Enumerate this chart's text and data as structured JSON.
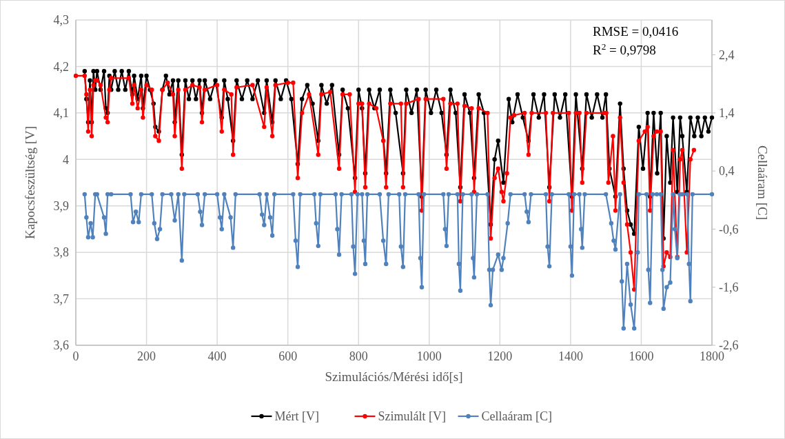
{
  "chart_data": {
    "type": "line",
    "xlabel": "Szimulációs/Mérési  idő[s]",
    "ylabel": "Kapocsfeszültség [V]",
    "y2label": "Cellaáram [C]",
    "annotations": [
      "RMSE = 0,0416",
      "R$^{2}$ = 0,9798"
    ],
    "xlim": [
      0,
      1800
    ],
    "xticks": [
      0,
      200,
      400,
      600,
      800,
      1000,
      1200,
      1400,
      1600,
      1800
    ],
    "ylim": [
      3.6,
      4.3
    ],
    "yticks": [
      {
        "value": 3.6,
        "label": "3,6"
      },
      {
        "value": 3.7,
        "label": "3,7"
      },
      {
        "value": 3.8,
        "label": "3,8"
      },
      {
        "value": 3.9,
        "label": "3,9"
      },
      {
        "value": 4,
        "label": "4"
      },
      {
        "value": 4.1,
        "label": "4,1"
      },
      {
        "value": 4.2,
        "label": "4,2"
      },
      {
        "value": 4.3,
        "label": "4,3"
      }
    ],
    "y2lim": [
      -2.6,
      3.0
    ],
    "y2ticks": [
      {
        "value": -2.6,
        "label": "-2,6"
      },
      {
        "value": -1.6,
        "label": "-1,6"
      },
      {
        "value": -0.6,
        "label": "-0,6"
      },
      {
        "value": 0.4,
        "label": "0,4"
      },
      {
        "value": 1.4,
        "label": "1,4"
      },
      {
        "value": 2.4,
        "label": "2,4"
      }
    ],
    "grid": true,
    "legend": "bottom",
    "marker": "circle",
    "line_style": "solid",
    "series": [
      {
        "name": "Mért [V]",
        "color": "#000000",
        "x": [
          25,
          30,
          35,
          40,
          45,
          50,
          55,
          60,
          70,
          80,
          85,
          90,
          95,
          100,
          110,
          120,
          130,
          140,
          150,
          160,
          165,
          175,
          185,
          190,
          200,
          210,
          220,
          225,
          235,
          245,
          255,
          265,
          275,
          280,
          290,
          300,
          310,
          320,
          330,
          340,
          350,
          357,
          365,
          380,
          395,
          413,
          420,
          430,
          445,
          455,
          470,
          485,
          500,
          515,
          533,
          540,
          556,
          565,
          580,
          595,
          610,
          628,
          640,
          655,
          670,
          686,
          695,
          710,
          725,
          745,
          755,
          770,
          790,
          800,
          810,
          819,
          830,
          845,
          860,
          878,
          890,
          905,
          926,
          935,
          950,
          965,
          979,
          990,
          1005,
          1020,
          1035,
          1049,
          1060,
          1075,
          1088,
          1100,
          1115,
          1127,
          1140,
          1155,
          1174,
          1185,
          1195,
          1210,
          1225,
          1235,
          1250,
          1265,
          1281,
          1295,
          1310,
          1325,
          1340,
          1355,
          1370,
          1385,
          1404,
          1415,
          1433,
          1445,
          1460,
          1475,
          1490,
          1500,
          1510,
          1527,
          1540,
          1550,
          1560,
          1570,
          1580,
          1593,
          1605,
          1618,
          1625,
          1635,
          1645,
          1655,
          1663,
          1672,
          1682,
          1690,
          1702,
          1710,
          1716,
          1729,
          1739,
          1750,
          1760,
          1770,
          1780,
          1790,
          1800
        ],
        "values": [
          4.19,
          4.13,
          4.08,
          4.17,
          4.08,
          4.19,
          4.15,
          4.19,
          4.15,
          4.19,
          4.11,
          4.1,
          4.18,
          4.15,
          4.19,
          4.15,
          4.19,
          4.15,
          4.19,
          4.14,
          4.18,
          4.13,
          4.18,
          4.11,
          4.18,
          4.15,
          4.12,
          4.07,
          4.06,
          4.15,
          4.18,
          4.14,
          4.17,
          4.08,
          4.17,
          4.01,
          4.17,
          4.13,
          4.17,
          4.13,
          4.17,
          4.1,
          4.17,
          4.13,
          4.17,
          4.09,
          4.17,
          4.13,
          4.04,
          4.17,
          4.13,
          4.17,
          4.13,
          4.17,
          4.1,
          4.17,
          4.08,
          4.17,
          4.13,
          4.17,
          4.13,
          3.99,
          4.13,
          4.16,
          4.12,
          4.04,
          4.16,
          4.12,
          4.16,
          4.01,
          4.15,
          4.11,
          3.96,
          4.15,
          4.11,
          3.97,
          4.15,
          4.11,
          4.15,
          3.97,
          4.15,
          4.1,
          3.97,
          4.15,
          4.1,
          4.15,
          3.92,
          4.15,
          4.1,
          4.15,
          4.1,
          4.01,
          4.15,
          4.1,
          3.94,
          4.14,
          4.1,
          3.96,
          4.14,
          4.1,
          3.86,
          4.0,
          4.04,
          3.95,
          4.13,
          4.08,
          4.14,
          4.09,
          4.04,
          4.14,
          4.09,
          4.14,
          3.94,
          4.14,
          4.09,
          4.14,
          3.92,
          4.14,
          3.98,
          4.14,
          4.09,
          4.14,
          4.09,
          4.14,
          3.98,
          3.92,
          4.12,
          3.98,
          3.89,
          3.86,
          3.84,
          4.07,
          3.98,
          4.1,
          3.92,
          4.1,
          3.97,
          4.1,
          3.83,
          4.05,
          3.95,
          4.09,
          3.93,
          4.09,
          4.05,
          3.93,
          4.09,
          4.05,
          4.09,
          4.05,
          4.09,
          4.06,
          4.09
        ]
      },
      {
        "name": "Szimulált [V]",
        "color": "#ff0000",
        "x": [
          0,
          25,
          30,
          35,
          40,
          45,
          50,
          55,
          60,
          70,
          85,
          90,
          95,
          100,
          150,
          160,
          165,
          175,
          185,
          190,
          200,
          215,
          225,
          235,
          245,
          260,
          275,
          280,
          290,
          300,
          310,
          330,
          350,
          357,
          365,
          400,
          413,
          420,
          440,
          445,
          455,
          500,
          533,
          540,
          556,
          565,
          600,
          615,
          628,
          640,
          660,
          686,
          695,
          720,
          745,
          755,
          775,
          790,
          800,
          810,
          819,
          830,
          850,
          870,
          878,
          890,
          920,
          926,
          935,
          970,
          979,
          990,
          1040,
          1049,
          1060,
          1080,
          1088,
          1100,
          1120,
          1127,
          1140,
          1165,
          1174,
          1185,
          1195,
          1205,
          1210,
          1220,
          1230,
          1240,
          1270,
          1281,
          1290,
          1330,
          1340,
          1350,
          1395,
          1404,
          1415,
          1425,
          1433,
          1445,
          1495,
          1501,
          1507,
          1520,
          1527,
          1540,
          1550,
          1560,
          1570,
          1580,
          1593,
          1610,
          1618,
          1625,
          1635,
          1644,
          1655,
          1663,
          1672,
          1682,
          1690,
          1702,
          1710,
          1716,
          1729,
          1739,
          1749
        ],
        "values": [
          4.18,
          4.18,
          4.14,
          4.06,
          4.15,
          4.05,
          4.16,
          4.17,
          4.17,
          4.16,
          4.09,
          4.08,
          4.15,
          4.175,
          4.175,
          4.12,
          4.16,
          4.11,
          4.15,
          4.09,
          4.16,
          4.15,
          4.05,
          4.04,
          4.15,
          4.165,
          4.14,
          4.05,
          4.15,
          3.98,
          4.15,
          4.16,
          4.155,
          4.08,
          4.15,
          4.16,
          4.06,
          4.15,
          4.14,
          4.01,
          4.155,
          4.16,
          4.07,
          4.155,
          4.05,
          4.16,
          4.165,
          4.165,
          3.96,
          4.1,
          4.14,
          4.01,
          4.14,
          4.145,
          3.98,
          4.14,
          4.14,
          3.93,
          4.12,
          4.12,
          3.94,
          4.12,
          4.11,
          4.04,
          3.94,
          4.12,
          4.12,
          3.94,
          4.12,
          4.13,
          3.89,
          4.13,
          4.13,
          3.98,
          4.12,
          4.12,
          3.91,
          4.115,
          4.11,
          3.93,
          4.11,
          4.1,
          3.83,
          3.96,
          3.98,
          3.93,
          3.91,
          3.97,
          4.09,
          4.095,
          4.1,
          4.01,
          4.1,
          4.1,
          3.91,
          4.1,
          4.1,
          3.89,
          4.1,
          4.1,
          3.95,
          4.1,
          4.1,
          4.1,
          3.95,
          4.05,
          3.89,
          4.09,
          3.95,
          3.86,
          3.8,
          3.72,
          4.04,
          4.06,
          4.07,
          3.89,
          4.05,
          4.06,
          4.06,
          3.77,
          3.8,
          3.79,
          4.02,
          3.79,
          4.0,
          4.02,
          3.8,
          4.0,
          4.02
        ]
      },
      {
        "name": "Cellaáram [C]",
        "color": "#4f81bd",
        "axis": "y2",
        "x": [
          25,
          30,
          35,
          42,
          48,
          55,
          60,
          80,
          85,
          90,
          100,
          155,
          162,
          170,
          178,
          185,
          215,
          222,
          230,
          238,
          245,
          270,
          280,
          290,
          300,
          307,
          345,
          352,
          357,
          365,
          400,
          408,
          413,
          420,
          438,
          445,
          452,
          520,
          527,
          533,
          540,
          550,
          556,
          562,
          615,
          622,
          628,
          635,
          675,
          680,
          686,
          692,
          735,
          740,
          745,
          752,
          780,
          785,
          790,
          797,
          810,
          815,
          819,
          825,
          860,
          870,
          878,
          885,
          915,
          920,
          926,
          932,
          970,
          975,
          979,
          985,
          1040,
          1045,
          1049,
          1055,
          1080,
          1084,
          1088,
          1095,
          1120,
          1124,
          1127,
          1135,
          1165,
          1170,
          1174,
          1180,
          1195,
          1205,
          1210,
          1222,
          1230,
          1270,
          1276,
          1281,
          1288,
          1330,
          1335,
          1340,
          1347,
          1395,
          1400,
          1404,
          1410,
          1425,
          1430,
          1433,
          1440,
          1500,
          1515,
          1522,
          1527,
          1540,
          1545,
          1550,
          1560,
          1570,
          1580,
          1590,
          1593,
          1615,
          1620,
          1625,
          1632,
          1644,
          1655,
          1660,
          1663,
          1672,
          1682,
          1690,
          1695,
          1702,
          1709,
          1716,
          1730,
          1735,
          1739,
          1745,
          1800
        ],
        "values": [
          0,
          -0.4,
          -0.74,
          -0.5,
          -0.74,
          0,
          0,
          -0.4,
          -0.68,
          0,
          0,
          0,
          -0.48,
          -0.3,
          -0.48,
          0,
          0,
          -0.5,
          -0.77,
          -0.6,
          0,
          0,
          -0.45,
          0,
          -1.14,
          0,
          0,
          -0.3,
          -0.53,
          0,
          0,
          -0.4,
          -0.6,
          0,
          -0.4,
          -0.92,
          0,
          0,
          -0.35,
          -0.53,
          0,
          -0.4,
          -0.71,
          0,
          0,
          -0.8,
          -1.25,
          0,
          0,
          -0.5,
          -0.89,
          0,
          0,
          -0.6,
          -1.04,
          0,
          0,
          -0.9,
          -1.37,
          0,
          0,
          -0.8,
          -1.2,
          0,
          0,
          -0.8,
          -1.2,
          0,
          0,
          -0.9,
          -1.25,
          0,
          0,
          -1.1,
          -1.6,
          0,
          0,
          -0.6,
          -0.89,
          0,
          0,
          -1.2,
          -1.66,
          0,
          0,
          -1.1,
          -1.43,
          0,
          0,
          -1.3,
          -1.91,
          -1.3,
          -1.04,
          -1.3,
          -1.1,
          -0.5,
          0,
          0,
          -0.3,
          -0.48,
          0,
          0,
          -0.9,
          -1.24,
          0,
          0,
          -0.9,
          -1.4,
          0,
          0,
          -0.6,
          -0.92,
          0,
          0,
          -0.5,
          -0.8,
          -0.95,
          0,
          -1.5,
          -2.31,
          -1.2,
          -1.9,
          -2.31,
          -1.0,
          0,
          0,
          -1.3,
          -1.87,
          0,
          0,
          0,
          -1.3,
          -1.97,
          -1.6,
          -1.52,
          0,
          -0.6,
          -1.1,
          0,
          0,
          0,
          -1.2,
          -1.84,
          0,
          0
        ]
      }
    ]
  }
}
